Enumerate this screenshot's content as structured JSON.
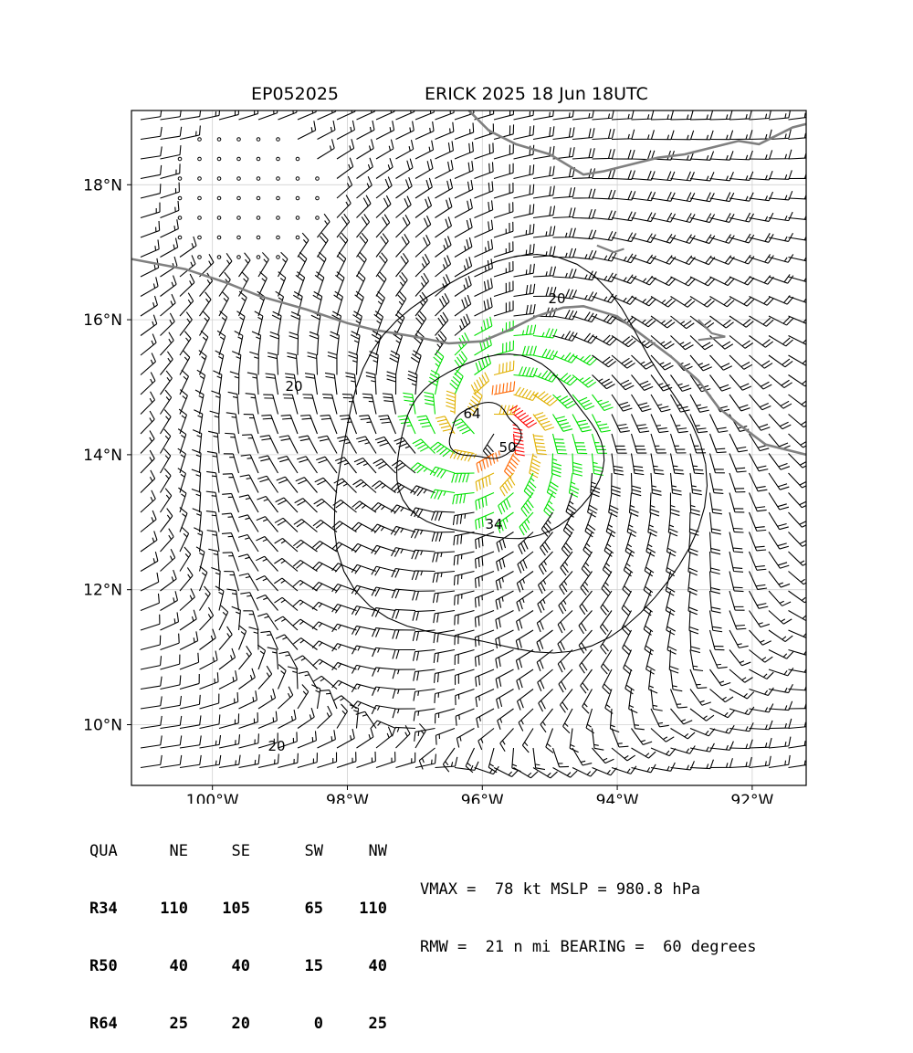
{
  "title_left": "EP052025",
  "title_right": "ERICK 2025 18 Jun 18UTC",
  "colors": {
    "barb_low": "#000000",
    "barb_34": "#00e000",
    "barb_50": "#e0b000",
    "barb_64": "#ff6600",
    "barb_core": "#ff0000",
    "coast": "#808080",
    "contour": "#000000",
    "grid": "#d0d0d0"
  },
  "map": {
    "lon_range": [
      -101.2,
      -91.2
    ],
    "lat_range": [
      9.1,
      19.1
    ],
    "x_ticks": [
      "100°W",
      "98°W",
      "96°W",
      "94°W",
      "92°W"
    ],
    "y_ticks": [
      "18°N",
      "16°N",
      "14°N",
      "12°N",
      "10°N"
    ],
    "contour_labels": [
      "20",
      "20",
      "20",
      "34",
      "50",
      "64"
    ],
    "grid": true
  },
  "storm": {
    "center_lat": 14.4,
    "center_lon": -95.9
  },
  "radii_table": {
    "header": [
      "QUA",
      "NE",
      "SE",
      "SW",
      "NW"
    ],
    "rows": [
      [
        "R34",
        "110",
        "105",
        "65",
        "110"
      ],
      [
        "R50",
        "40",
        "40",
        "15",
        "40"
      ],
      [
        "R64",
        "25",
        "20",
        "0",
        "25"
      ]
    ]
  },
  "stats": {
    "line1": "VMAX =  78 kt MSLP = 980.8 hPa",
    "line2": "RMW =  21 n mi BEARING =  60 degrees"
  }
}
